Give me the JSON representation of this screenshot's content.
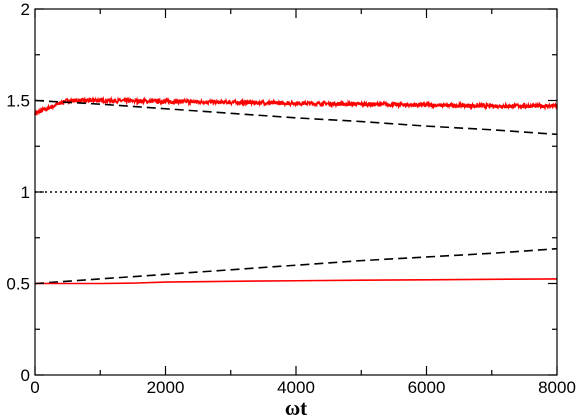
{
  "chart_data": {
    "type": "line",
    "title": "",
    "xlabel": "ωt",
    "ylabel": "",
    "xlim": [
      0,
      8000
    ],
    "ylim": [
      0,
      2
    ],
    "x_ticks": [
      0,
      2000,
      4000,
      6000,
      8000
    ],
    "y_ticks": [
      0,
      0.5,
      1,
      1.5,
      2
    ],
    "x_tick_labels": [
      "0",
      "2000",
      "4000",
      "6000",
      "8000"
    ],
    "y_tick_labels": [
      "0",
      "0.5",
      "1",
      "1.5",
      "2"
    ],
    "grid": false,
    "legend": "none",
    "series": [
      {
        "style": "solid",
        "color": "#ff0000",
        "noisy": true,
        "x": [
          0,
          500,
          1000,
          2000,
          3000,
          4000,
          5000,
          6000,
          7000,
          8000
        ],
        "y": [
          1.43,
          1.5,
          1.5,
          1.495,
          1.49,
          1.485,
          1.48,
          1.475,
          1.47,
          1.47
        ]
      },
      {
        "style": "dashed",
        "color": "#000000",
        "noisy": false,
        "x": [
          0,
          1000,
          2000,
          3000,
          4000,
          5000,
          6000,
          7000,
          8000
        ],
        "y": [
          1.5,
          1.48,
          1.455,
          1.43,
          1.405,
          1.385,
          1.36,
          1.34,
          1.315
        ]
      },
      {
        "style": "dotted",
        "color": "#000000",
        "noisy": false,
        "x": [
          0,
          8000
        ],
        "y": [
          1.0,
          1.0
        ]
      },
      {
        "style": "dashed",
        "color": "#000000",
        "noisy": false,
        "x": [
          0,
          1000,
          2000,
          3000,
          4000,
          5000,
          6000,
          7000,
          8000
        ],
        "y": [
          0.5,
          0.525,
          0.55,
          0.575,
          0.6,
          0.625,
          0.645,
          0.665,
          0.69
        ]
      },
      {
        "style": "solid",
        "color": "#ff0000",
        "noisy": false,
        "x": [
          0,
          1000,
          1500,
          2000,
          3000,
          4000,
          5000,
          6000,
          7000,
          8000
        ],
        "y": [
          0.5,
          0.5,
          0.502,
          0.508,
          0.512,
          0.515,
          0.518,
          0.52,
          0.523,
          0.525
        ]
      }
    ]
  }
}
